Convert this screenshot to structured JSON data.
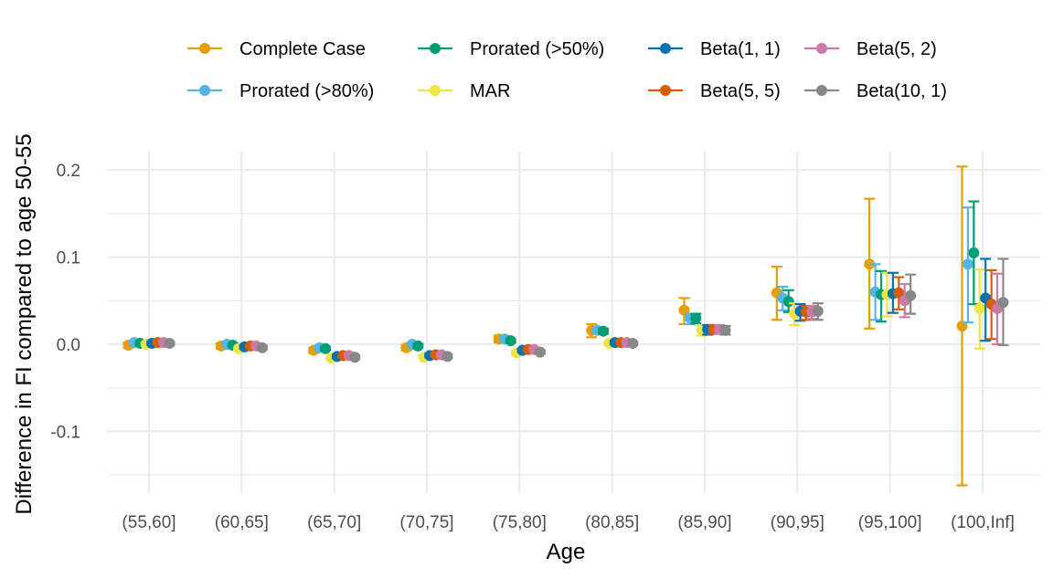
{
  "chart_data": {
    "type": "scatter",
    "subtype": "pointrange-dodged",
    "title": "",
    "xlabel": "Age",
    "ylabel": "Difference in FI compared to age 50-55",
    "categories": [
      "(55,60]",
      "(60,65]",
      "(65,70]",
      "(70,75]",
      "(75,80]",
      "(80,85]",
      "(85,90]",
      "(90,95]",
      "(95,100]",
      "(100,Inf]"
    ],
    "ylim": [
      -0.165,
      0.215
    ],
    "yticks": [
      -0.1,
      0.0,
      0.1,
      0.2
    ],
    "ytick_labels": [
      "-0.1",
      "0.0",
      "0.1",
      "0.2"
    ],
    "grid": true,
    "legend": {
      "position": "top",
      "columns": 4
    },
    "series": [
      {
        "name": "Complete Case",
        "color": "#E69F00",
        "values": [
          -0.001,
          -0.002,
          -0.007,
          -0.004,
          0.006,
          0.016,
          0.039,
          0.059,
          0.092,
          0.021
        ],
        "lower": [
          -0.004,
          -0.005,
          -0.01,
          -0.007,
          0.002,
          0.008,
          0.023,
          0.028,
          0.018,
          -0.162
        ],
        "upper": [
          0.002,
          0.001,
          -0.004,
          -0.001,
          0.01,
          0.023,
          0.053,
          0.089,
          0.167,
          0.204
        ]
      },
      {
        "name": "Prorated (>80%)",
        "color": "#56B4E9",
        "values": [
          0.002,
          0.0,
          -0.004,
          0.0,
          0.006,
          0.016,
          0.03,
          0.053,
          0.06,
          0.092
        ],
        "lower": [
          0.0,
          -0.002,
          -0.006,
          -0.002,
          0.003,
          0.013,
          0.023,
          0.039,
          0.028,
          0.025
        ],
        "upper": [
          0.004,
          0.002,
          -0.002,
          0.002,
          0.009,
          0.019,
          0.035,
          0.066,
          0.092,
          0.157
        ]
      },
      {
        "name": "Prorated (>50%)",
        "color": "#009E73",
        "values": [
          0.001,
          -0.001,
          -0.005,
          -0.002,
          0.004,
          0.015,
          0.03,
          0.049,
          0.057,
          0.105
        ],
        "lower": [
          -0.001,
          -0.003,
          -0.007,
          -0.004,
          0.002,
          0.012,
          0.024,
          0.037,
          0.026,
          0.046
        ],
        "upper": [
          0.003,
          0.001,
          -0.003,
          0.0,
          0.006,
          0.018,
          0.035,
          0.062,
          0.084,
          0.164
        ]
      },
      {
        "name": "MAR",
        "color": "#F0E442",
        "values": [
          0.0,
          -0.005,
          -0.016,
          -0.015,
          -0.01,
          0.001,
          0.016,
          0.035,
          0.057,
          0.041
        ],
        "lower": [
          -0.002,
          -0.007,
          -0.018,
          -0.017,
          -0.012,
          -0.001,
          0.01,
          0.022,
          0.032,
          -0.005
        ],
        "upper": [
          0.002,
          -0.003,
          -0.014,
          -0.013,
          -0.008,
          0.003,
          0.021,
          0.047,
          0.082,
          0.086
        ]
      },
      {
        "name": "Beta(1, 1)",
        "color": "#0072B2",
        "values": [
          0.001,
          -0.003,
          -0.014,
          -0.013,
          -0.007,
          0.002,
          0.017,
          0.038,
          0.058,
          0.053
        ],
        "lower": [
          -0.001,
          -0.005,
          -0.016,
          -0.015,
          -0.009,
          0.0,
          0.011,
          0.027,
          0.036,
          0.004
        ],
        "upper": [
          0.003,
          -0.001,
          -0.012,
          -0.011,
          -0.005,
          0.004,
          0.022,
          0.046,
          0.082,
          0.098
        ]
      },
      {
        "name": "Beta(5, 5)",
        "color": "#D55E00",
        "values": [
          0.002,
          -0.002,
          -0.013,
          -0.012,
          -0.006,
          0.002,
          0.017,
          0.037,
          0.059,
          0.046
        ],
        "lower": [
          0.0,
          -0.004,
          -0.015,
          -0.014,
          -0.008,
          0.0,
          0.012,
          0.028,
          0.04,
          0.006
        ],
        "upper": [
          0.004,
          0.0,
          -0.011,
          -0.01,
          -0.004,
          0.004,
          0.022,
          0.044,
          0.077,
          0.085
        ]
      },
      {
        "name": "Beta(5, 2)",
        "color": "#CC79A7",
        "values": [
          0.002,
          -0.002,
          -0.013,
          -0.012,
          -0.006,
          0.002,
          0.017,
          0.037,
          0.05,
          0.041
        ],
        "lower": [
          0.0,
          -0.004,
          -0.015,
          -0.014,
          -0.008,
          0.0,
          0.012,
          0.029,
          0.031,
          0.0
        ],
        "upper": [
          0.004,
          0.0,
          -0.011,
          -0.01,
          -0.004,
          0.004,
          0.022,
          0.044,
          0.069,
          0.081
        ]
      },
      {
        "name": "Beta(10, 1)",
        "color": "#888888",
        "values": [
          0.001,
          -0.004,
          -0.015,
          -0.014,
          -0.009,
          0.001,
          0.016,
          0.038,
          0.056,
          0.048
        ],
        "lower": [
          -0.001,
          -0.006,
          -0.017,
          -0.016,
          -0.011,
          -0.001,
          0.011,
          0.028,
          0.035,
          -0.001
        ],
        "upper": [
          0.003,
          -0.002,
          -0.013,
          -0.012,
          -0.007,
          0.003,
          0.021,
          0.047,
          0.08,
          0.098
        ]
      }
    ]
  }
}
